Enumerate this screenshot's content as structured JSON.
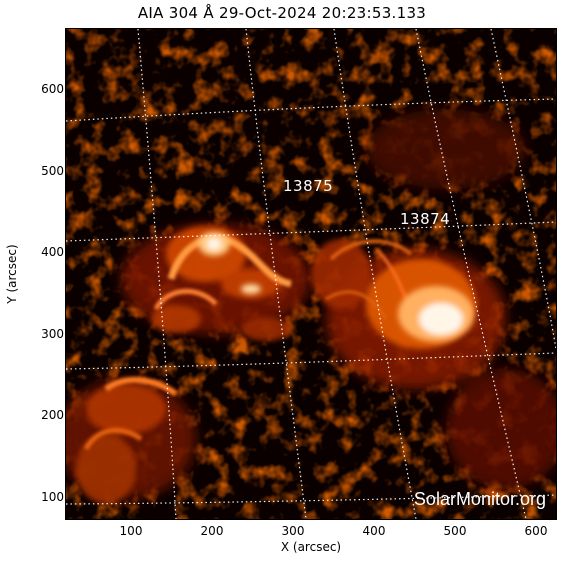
{
  "title": "AIA 304 Å 29-Oct-2024 20:23:53.133",
  "axes": {
    "xlabel": "X (arcsec)",
    "ylabel": "Y (arcsec)",
    "x_ticks": [
      "100",
      "200",
      "300",
      "400",
      "500",
      "600"
    ],
    "y_ticks": [
      "100",
      "200",
      "300",
      "400",
      "500",
      "600"
    ]
  },
  "regions": [
    "13875",
    "13874"
  ],
  "watermark": "SolarMonitor.org",
  "colors": {
    "background": "#0a0000",
    "emission_dim": "#7a1400",
    "emission_mid": "#d24a00",
    "emission_bright": "#ffb060",
    "emission_peak": "#fff6e8",
    "grid": "#ffffff"
  }
}
